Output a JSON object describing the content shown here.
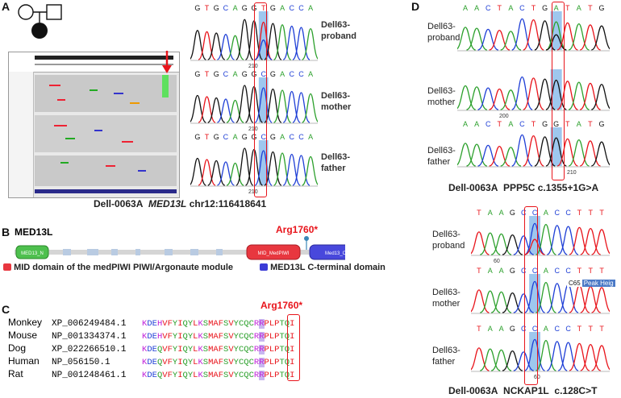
{
  "panelA": {
    "letter": "A",
    "caption_prefix": "Dell-0063A",
    "caption_gene": "MED13L",
    "caption_locus": "chr12:116418641",
    "seq_bases": [
      "G",
      "T",
      "G",
      "C",
      "A",
      "G",
      "G",
      "T",
      "G",
      "A",
      "C",
      "C",
      "A"
    ],
    "position": "210",
    "traces": [
      {
        "label_line1": "Dell63-",
        "label_line2": "proband",
        "highlight_base": "T"
      },
      {
        "label_line1": "Dell63-",
        "label_line2": "mother",
        "highlight_base": "C"
      },
      {
        "label_line1": "Dell63-",
        "label_line2": "father",
        "highlight_base": "C"
      }
    ]
  },
  "panelB": {
    "letter": "B",
    "protein": "MED13L",
    "variant": "Arg1760*",
    "domains": [
      "MED13_N",
      "MID_MedPIWI",
      "Med13_C"
    ],
    "legend": [
      {
        "label": "MID domain of the medPIWI PIWI/Argonaute module",
        "color": "#e8373f"
      },
      {
        "label": "MED13L C-terminal domain",
        "color": "#3b3bd6"
      }
    ]
  },
  "panelC": {
    "letter": "C",
    "variant": "Arg1760*",
    "rows": [
      {
        "species": "Monkey",
        "accession": "XP_006249484.1",
        "seq": "KDEHVFYIQYLKSMAFSVYCQCRRPLPTQI"
      },
      {
        "species": "Mouse",
        "accession": "NP_001334374.1",
        "seq": "KDEHVFYIQYLKSMAFSVYCQCRRPLPTQI"
      },
      {
        "species": "Dog",
        "accession": "XP_022266510.1",
        "seq": "KDEQVFYIQYLKSMAFSVYCQCRRPLPTQI"
      },
      {
        "species": "Human",
        "accession": "NP_056150.1",
        "seq": "KDEQVFYIQYLKSMAFSVYCQCRRPLPTQI"
      },
      {
        "species": "Rat",
        "accession": "NP_001248461.1",
        "seq": "KDEQVFYIQYLKSMAFSVYCQCRRPLPTQI"
      }
    ]
  },
  "panelD": {
    "letter": "D",
    "top": {
      "seq_bases": [
        "A",
        "A",
        "C",
        "T",
        "A",
        "C",
        "T",
        "G",
        "A",
        "T",
        "A",
        "T",
        "G"
      ],
      "positions": [
        "200",
        "210"
      ],
      "caption_prefix": "Dell-0063A",
      "caption_gene": "PPP5C",
      "caption_variant": "c.1355+1G>A",
      "traces": [
        {
          "label_line1": "Dell63-",
          "label_line2": "proband"
        },
        {
          "label_line1": "Dell63-",
          "label_line2": "mother"
        },
        {
          "label_line1": "Dell63-",
          "label_line2": "father"
        }
      ]
    },
    "bottom": {
      "seq_bases": [
        "T",
        "A",
        "A",
        "G",
        "C",
        "C",
        "A",
        "C",
        "C",
        "T",
        "T",
        "T"
      ],
      "position": "60",
      "popup_code": "C65",
      "popup_text": "Peak Heig",
      "caption_prefix": "Dell-0063A",
      "caption_gene": "NCKAP1L",
      "caption_variant": "c.128C>T",
      "traces": [
        {
          "label_line1": "Dell63-",
          "label_line2": "proband"
        },
        {
          "label_line1": "Dell63-",
          "label_line2": "mother"
        },
        {
          "label_line1": "Dell63-",
          "label_line2": "father"
        }
      ]
    }
  },
  "colors": {
    "A": "#2ca02c",
    "C": "#1f3fd6",
    "G": "#111111",
    "T": "#e8141b",
    "highlight": "#9ec7ee",
    "box": "#e8141b"
  }
}
